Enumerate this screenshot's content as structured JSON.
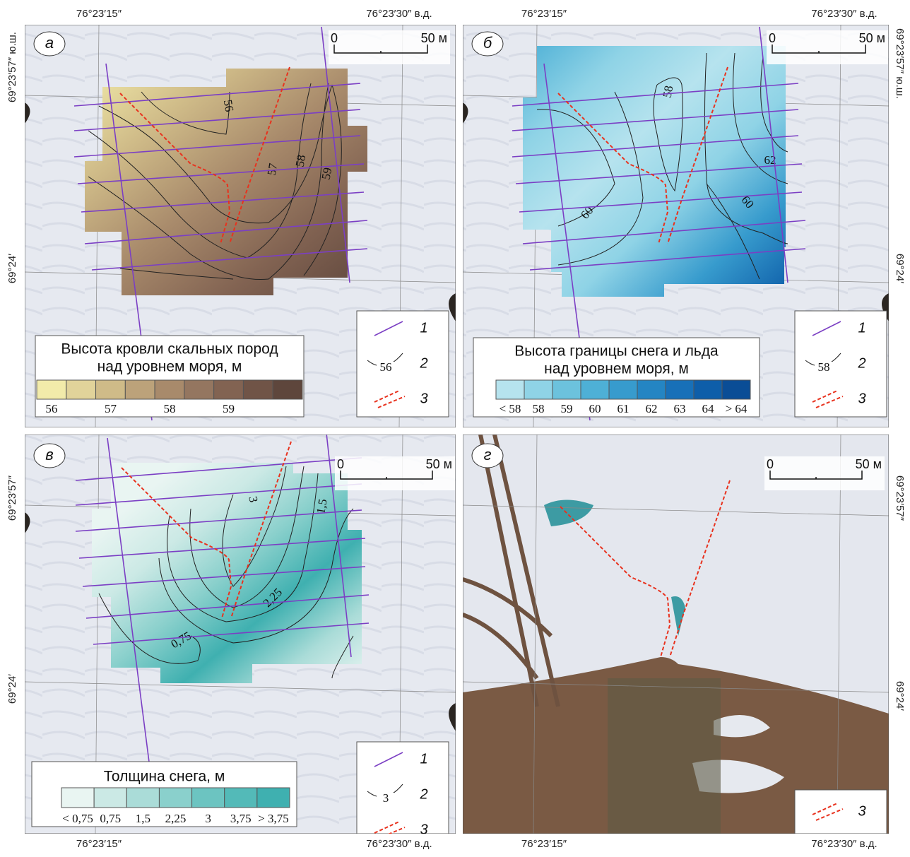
{
  "coordinates": {
    "top": [
      "76°23′15″",
      "76°23′30″ в.д.",
      "76°23′15″",
      "76°23′30″ в.д."
    ],
    "bottom": [
      "76°23′15″",
      "76°23′30″ в.д.",
      "76°23′15″",
      "76°23′30″ в.д."
    ],
    "left": [
      "69°23′57″ ю.ш.",
      "69°24′",
      "69°23′57″",
      "69°24′"
    ],
    "right": [
      "69°23′57″ ю.ш.",
      "69°24′",
      "69°23′57″",
      "69°24′"
    ]
  },
  "panels": [
    {
      "letter": "а",
      "scale": [
        "0",
        "50 м"
      ],
      "legend": {
        "title": [
          "Высота кровли скальных пород",
          "над уровнем моря, м"
        ],
        "colors": [
          "#f2ebaa",
          "#e1d39a",
          "#cfbb88",
          "#bca27a",
          "#a88a6b",
          "#947660",
          "#826352",
          "#705447",
          "#5e463c"
        ],
        "labels": [
          "56",
          "57",
          "58",
          "59"
        ]
      },
      "contours": [
        "56",
        "57",
        "58",
        "59"
      ],
      "key": [
        {
          "number": "1"
        },
        {
          "number": "2",
          "sample": "56"
        },
        {
          "number": "3"
        }
      ]
    },
    {
      "letter": "б",
      "scale": [
        "0",
        "50 м"
      ],
      "legend": {
        "title": [
          "Высота границы снега и льда",
          "над уровнем моря, м"
        ],
        "colors": [
          "#b6e3ee",
          "#8fd3e6",
          "#6cc2dd",
          "#4eb0d6",
          "#379bcd",
          "#2485c3",
          "#1870b8",
          "#0e5ea9",
          "#0a4d96"
        ],
        "labels": [
          "< 58",
          "58",
          "59",
          "60",
          "61",
          "62",
          "63",
          "64",
          "> 64"
        ]
      },
      "contours": [
        "58",
        "62",
        "60",
        "60"
      ],
      "key": [
        {
          "number": "1"
        },
        {
          "number": "2",
          "sample": "58"
        },
        {
          "number": "3"
        }
      ]
    },
    {
      "letter": "в",
      "scale": [
        "0",
        "50 м"
      ],
      "legend": {
        "title": [
          "Толщина  снега, м"
        ],
        "colors": [
          "#e9f5f2",
          "#cbe9e5",
          "#aadcd8",
          "#8ad0cc",
          "#6cc4c1",
          "#53bab8",
          "#3fb0b0"
        ],
        "labels": [
          "< 0,75",
          "0,75",
          "1,5",
          "2,25",
          "3",
          "3,75",
          "> 3,75"
        ]
      },
      "contours": [
        "3",
        "1,5",
        "2,25",
        "0,75"
      ],
      "key": [
        {
          "number": "1"
        },
        {
          "number": "2",
          "sample": "3"
        },
        {
          "number": "3"
        }
      ]
    },
    {
      "letter": "г",
      "scale": [
        "0",
        "50 м"
      ],
      "key": [
        {
          "number": "3"
        }
      ]
    }
  ]
}
